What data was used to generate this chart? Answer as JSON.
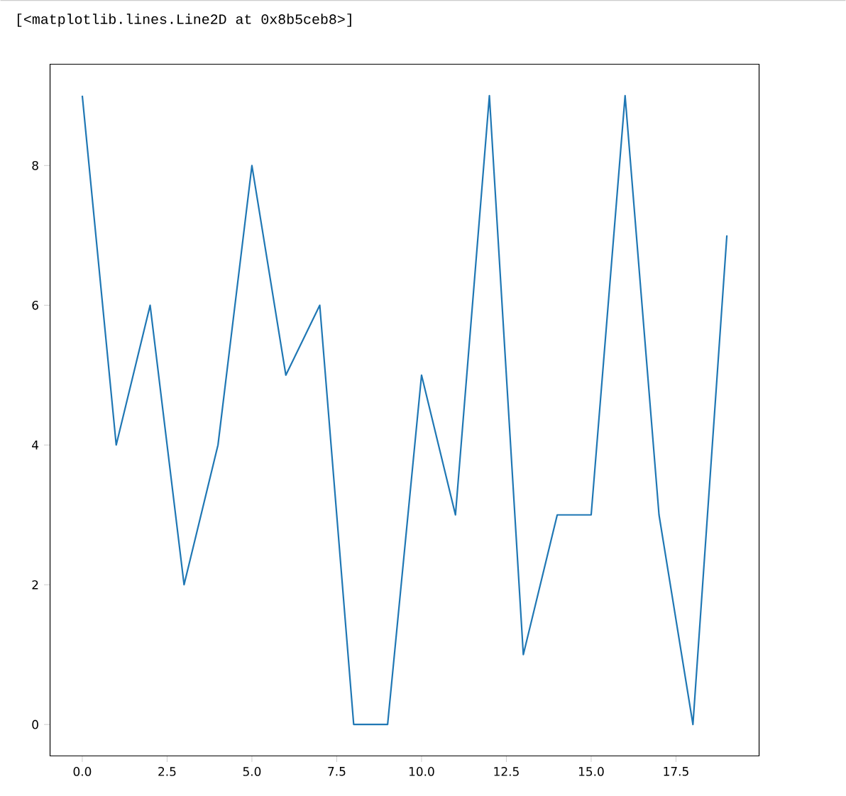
{
  "chart_data": {
    "type": "line",
    "annotations": [
      "[<matplotlib.lines.Line2D at 0x8b5ceb8>]"
    ],
    "x": [
      0,
      1,
      2,
      3,
      4,
      5,
      6,
      7,
      8,
      9,
      10,
      11,
      12,
      13,
      14,
      15,
      16,
      17,
      18,
      19
    ],
    "series": [
      {
        "color": "#1f77b4",
        "values": [
          9,
          4,
          6,
          2,
          4,
          8,
          5,
          6,
          0,
          0,
          5,
          3,
          9,
          1,
          3,
          3,
          9,
          3,
          0,
          7
        ]
      }
    ],
    "xlim": [
      -0.95,
      19.95
    ],
    "ylim": [
      -0.45,
      9.45
    ],
    "xticks": [
      {
        "value": 0,
        "label": "0.0"
      },
      {
        "value": 2.5,
        "label": "2.5"
      },
      {
        "value": 5,
        "label": "5.0"
      },
      {
        "value": 7.5,
        "label": "7.5"
      },
      {
        "value": 10,
        "label": "10.0"
      },
      {
        "value": 12.5,
        "label": "12.5"
      },
      {
        "value": 15,
        "label": "15.0"
      },
      {
        "value": 17.5,
        "label": "17.5"
      }
    ],
    "yticks": [
      0,
      2,
      4,
      6,
      8
    ],
    "line_style": "solid",
    "marker": "none",
    "grid": false
  }
}
